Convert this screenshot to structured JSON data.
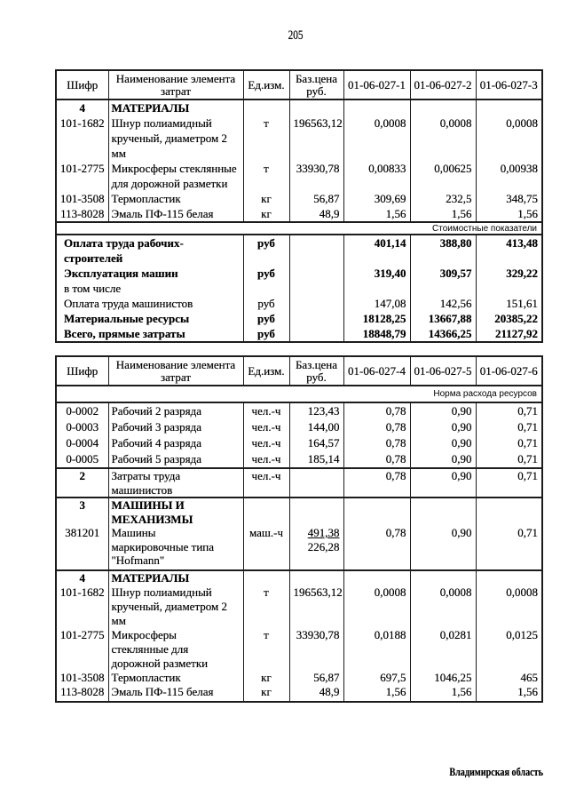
{
  "page": {
    "number": "205",
    "footer": "Владимирская область"
  },
  "tables": [
    {
      "name": "cost-indicators-table",
      "headers": [
        "Шифр",
        "Наименование элемента\nзатрат",
        "Ед.изм.",
        "Баз.цена\nруб.",
        "01-06-027-1",
        "01-06-027-2",
        "01-06-027-3"
      ],
      "groups": [
        {
          "type": "items",
          "rows": [
            {
              "code": "4",
              "name": "МАТЕРИАЛЫ",
              "bold": true
            },
            {
              "code": "101-1682",
              "name": "Шнур полиамидный\nкрученый, диаметром 2\nмм",
              "unit": "т",
              "price": "196563,12",
              "values": [
                "0,0008",
                "0,0008",
                "0,0008"
              ]
            },
            {
              "code": "101-2775",
              "name": "Микросферы стеклянные\nдля дорожной разметки",
              "unit": "т",
              "price": "33930,78",
              "values": [
                "0,00833",
                "0,00625",
                "0,00938"
              ]
            },
            {
              "code": "101-3508",
              "name": "Термопластик",
              "unit": "кг",
              "price": "56,87",
              "values": [
                "309,69",
                "232,5",
                "348,75"
              ]
            },
            {
              "code": "113-8028",
              "name": "Эмаль ПФ-115 белая",
              "unit": "кг",
              "price": "48,9",
              "values": [
                "1,56",
                "1,56",
                "1,56"
              ]
            }
          ]
        },
        {
          "type": "note",
          "text": "Стоимостные показатели"
        },
        {
          "type": "summary",
          "rows": [
            {
              "name": "Оплата труда рабочих-\nстроителей",
              "unit": "руб",
              "values": [
                "401,14",
                "388,80",
                "413,48"
              ],
              "bold": true
            },
            {
              "name": "Эксплуатация машин",
              "unit": "руб",
              "values": [
                "319,40",
                "309,57",
                "329,22"
              ],
              "bold": true
            },
            {
              "name": "в том числе"
            },
            {
              "name": "Оплата труда машинистов",
              "unit": "руб",
              "values": [
                "147,08",
                "142,56",
                "151,61"
              ]
            },
            {
              "name": "Материальные ресурсы",
              "unit": "руб",
              "values": [
                "18128,25",
                "13667,88",
                "20385,22"
              ],
              "bold": true
            },
            {
              "name": "Всего, прямые затраты",
              "unit": "руб",
              "values": [
                "18848,79",
                "14366,25",
                "21127,92"
              ],
              "bold": true
            }
          ]
        }
      ]
    },
    {
      "name": "resource-norms-table",
      "headers": [
        "Шифр",
        "Наименование элемента\nзатрат",
        "Ед.изм.",
        "Баз.цена\nруб.",
        "01-06-027-4",
        "01-06-027-5",
        "01-06-027-6"
      ],
      "groups": [
        {
          "type": "note",
          "text": "Норма расхода ресурсов"
        },
        {
          "type": "items",
          "rows": [
            {
              "code": "0-0002",
              "name": "Рабочий 2 разряда",
              "unit": "чел.-ч",
              "price": "123,43",
              "values": [
                "0,78",
                "0,90",
                "0,71"
              ]
            },
            {
              "code": "0-0003",
              "name": "Рабочий 3 разряда",
              "unit": "чел.-ч",
              "price": "144,00",
              "values": [
                "0,78",
                "0,90",
                "0,71"
              ]
            },
            {
              "code": "0-0004",
              "name": "Рабочий 4 разряда",
              "unit": "чел.-ч",
              "price": "164,57",
              "values": [
                "0,78",
                "0,90",
                "0,71"
              ]
            },
            {
              "code": "0-0005",
              "name": "Рабочий 5 разряда",
              "unit": "чел.-ч",
              "price": "185,14",
              "values": [
                "0,78",
                "0,90",
                "0,71"
              ]
            }
          ]
        },
        {
          "type": "items",
          "rows": [
            {
              "code": "2",
              "name": "Затраты труда\nмашинистов",
              "unit": "чел.-ч",
              "values": [
                "0,78",
                "0,90",
                "0,71"
              ],
              "code_bold": true
            }
          ]
        },
        {
          "type": "items",
          "rows": [
            {
              "code": "3",
              "name": "МАШИНЫ И\nМЕХАНИЗМЫ",
              "bold": true
            },
            {
              "code": "381201",
              "name": "Машины\nмаркировочные типа\n\"Hofmann\"",
              "unit": "маш.-ч",
              "price": "491,38",
              "price2": "226,28",
              "values": [
                "0,78",
                "0,90",
                "0,71"
              ]
            }
          ]
        },
        {
          "type": "items",
          "rows": [
            {
              "code": "4",
              "name": "МАТЕРИАЛЫ",
              "bold": true
            },
            {
              "code": "101-1682",
              "name": "Шнур полиамидный\nкрученый, диаметром 2\nмм",
              "unit": "т",
              "price": "196563,12",
              "values": [
                "0,0008",
                "0,0008",
                "0,0008"
              ]
            },
            {
              "code": "101-2775",
              "name": "Микросферы\nстеклянные для\nдорожной разметки",
              "unit": "т",
              "price": "33930,78",
              "values": [
                "0,0188",
                "0,0281",
                "0,0125"
              ]
            },
            {
              "code": "101-3508",
              "name": "Термопластик",
              "unit": "кг",
              "price": "56,87",
              "values": [
                "697,5",
                "1046,25",
                "465"
              ]
            },
            {
              "code": "113-8028",
              "name": "Эмаль ПФ-115 белая",
              "unit": "кг",
              "price": "48,9",
              "values": [
                "1,56",
                "1,56",
                "1,56"
              ]
            }
          ]
        }
      ]
    }
  ]
}
